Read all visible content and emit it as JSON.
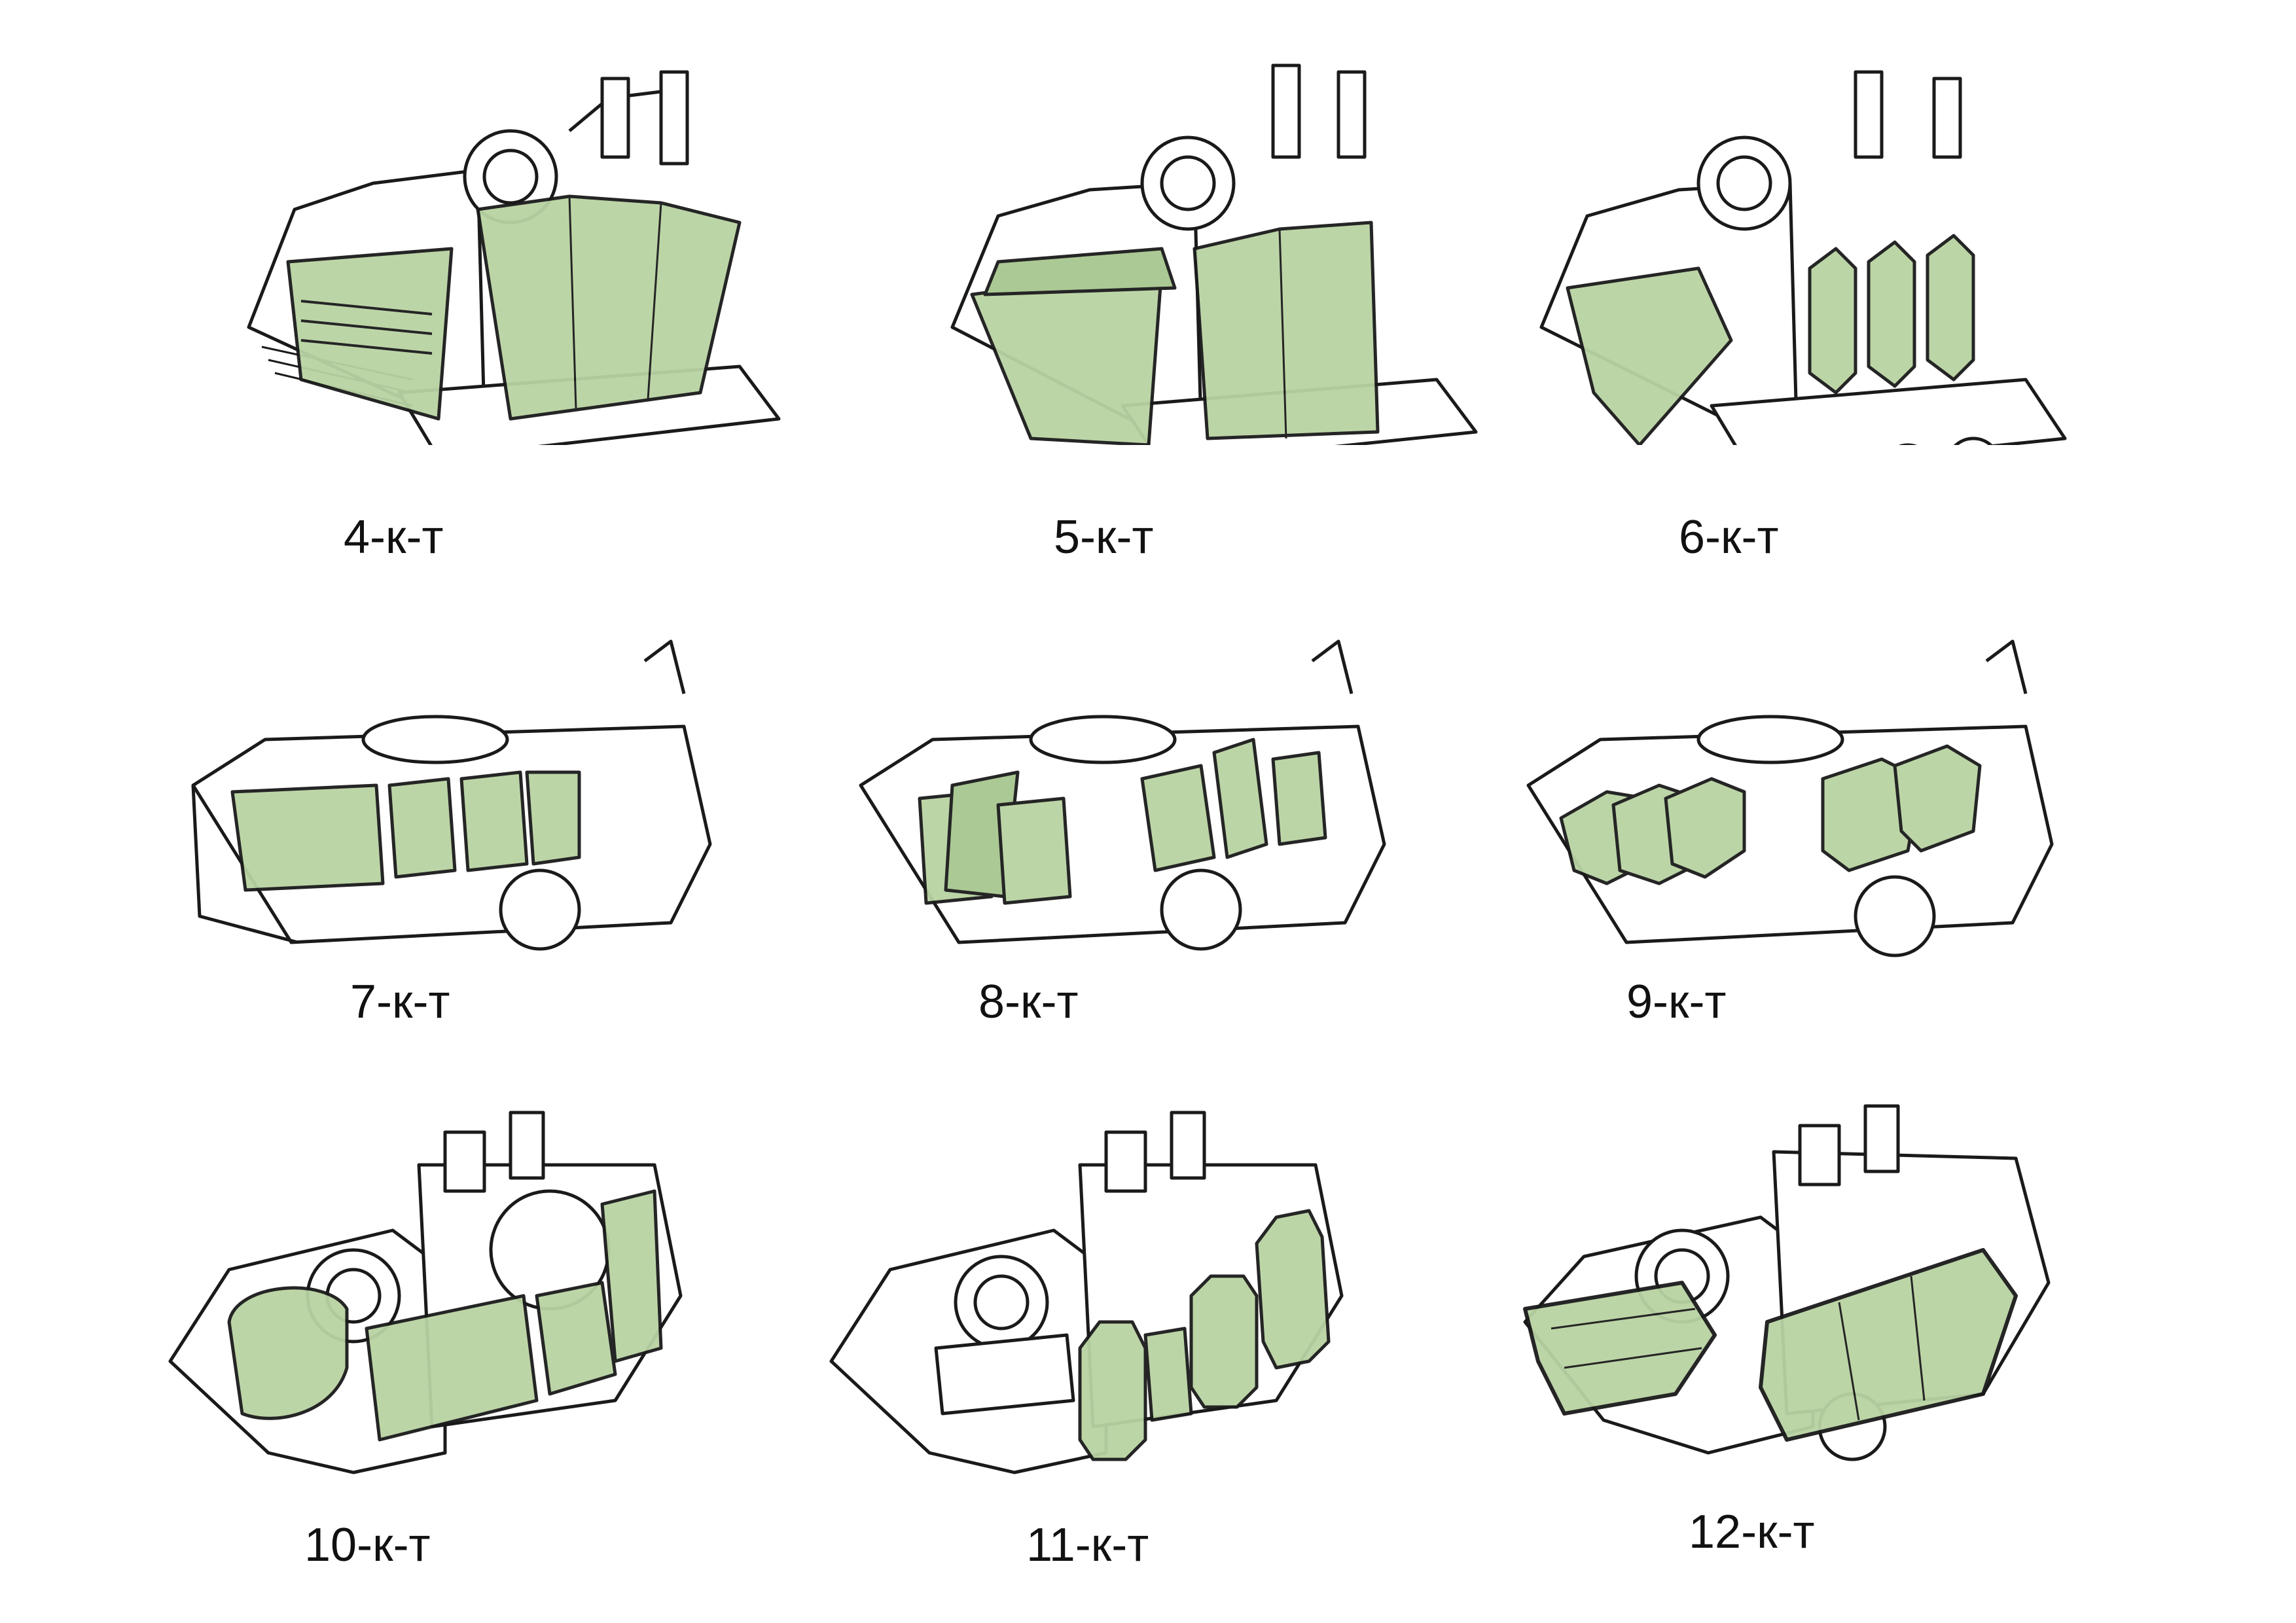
{
  "colors": {
    "ink": "#1a1a1a",
    "armor_fill": "#b9d3a3",
    "armor_dark": "#8fb277",
    "paper": "#ffffff"
  },
  "variants": [
    {
      "label": "4-к-т",
      "armor": "front-louvered-box-and-side-skirt"
    },
    {
      "label": "5-к-т",
      "armor": "angled-front-plate-and-tall-side-skirt"
    },
    {
      "label": "6-к-т",
      "armor": "frame-front-and-octagonal-side-plates"
    },
    {
      "label": "7-к-т",
      "armor": "front-box-and-side-boxes"
    },
    {
      "label": "8-к-т",
      "armor": "split-front-plates-and-side-plates"
    },
    {
      "label": "9-к-т",
      "armor": "faceted-front-and-faceted-side-blocks"
    },
    {
      "label": "10-к-т",
      "armor": "round-front-shield-and-side-skirt"
    },
    {
      "label": "11-к-т",
      "armor": "octagonal-plates-row"
    },
    {
      "label": "12-к-т",
      "armor": "caged-front-and-caged-side-skirt"
    }
  ]
}
